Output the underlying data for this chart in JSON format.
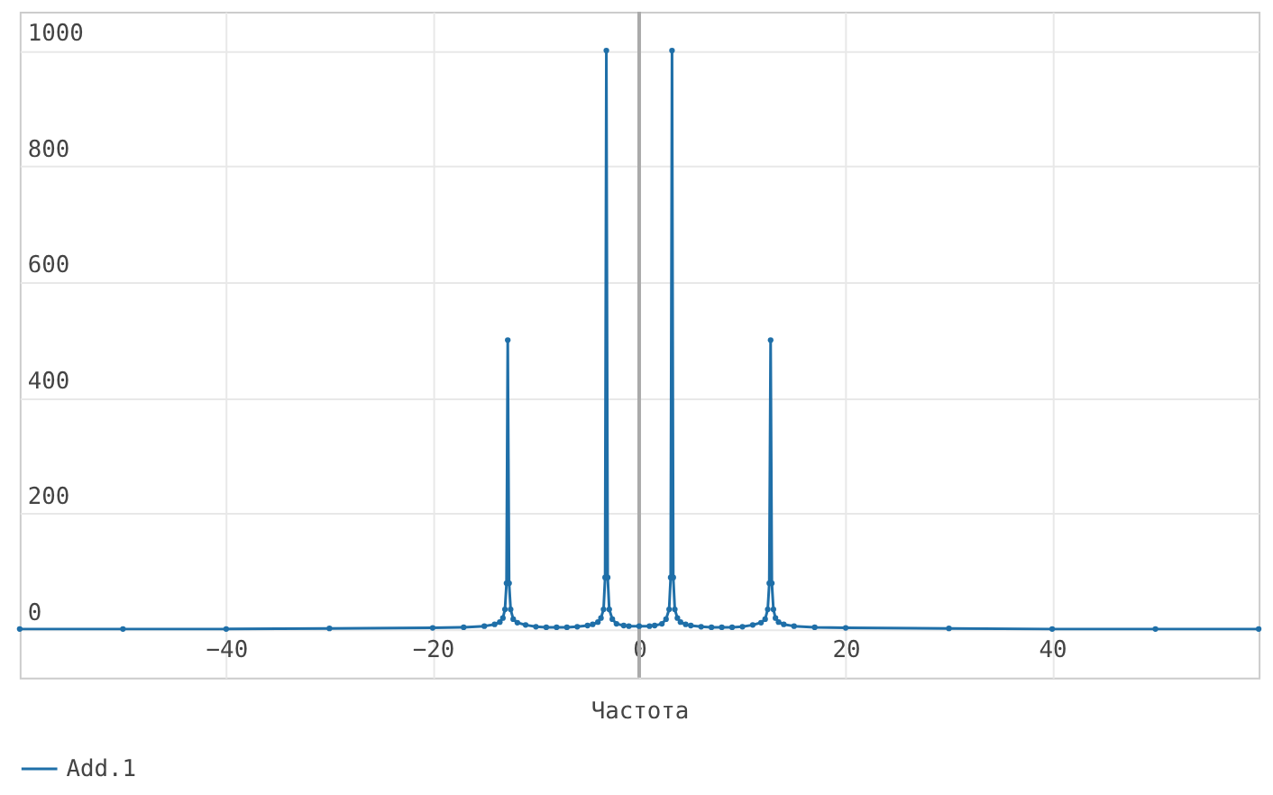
{
  "chart_data": {
    "type": "line",
    "xlabel": "Частота",
    "x": [
      -60,
      -50,
      -40,
      -30,
      -20,
      -17,
      -15,
      -14,
      -13.5,
      -13.2,
      -13.0,
      -12.85,
      -12.73,
      -12.6,
      -12.45,
      -12.2,
      -11.8,
      -11,
      -10,
      -9,
      -8,
      -7,
      -6,
      -5,
      -4.5,
      -4,
      -3.7,
      -3.45,
      -3.3,
      -3.18,
      -3.05,
      -2.9,
      -2.6,
      -2.2,
      -1.5,
      -1,
      0,
      1,
      1.5,
      2.2,
      2.6,
      2.9,
      3.05,
      3.18,
      3.3,
      3.45,
      3.7,
      4,
      4.5,
      5,
      6,
      7,
      8,
      9,
      10,
      11,
      11.8,
      12.2,
      12.45,
      12.6,
      12.73,
      12.85,
      13.0,
      13.2,
      13.5,
      14,
      15,
      17,
      20,
      30,
      40,
      50,
      60
    ],
    "series": [
      {
        "name": "Add.1",
        "color": "#1f6fa8",
        "values": [
          1,
          1,
          1,
          2,
          3,
          4,
          6,
          9,
          13,
          20,
          35,
          80,
          500,
          80,
          35,
          18,
          12,
          8,
          5,
          4,
          4,
          4,
          5,
          7,
          9,
          13,
          20,
          35,
          90,
          1000,
          90,
          35,
          18,
          10,
          7,
          6,
          6,
          6,
          7,
          10,
          18,
          35,
          90,
          1000,
          90,
          35,
          20,
          13,
          9,
          7,
          5,
          4,
          4,
          4,
          5,
          8,
          12,
          18,
          35,
          80,
          500,
          80,
          35,
          20,
          13,
          9,
          6,
          4,
          3,
          2,
          1,
          1,
          1
        ]
      }
    ],
    "xlim": [
      -60,
      60
    ],
    "xticks": [
      -40,
      -20,
      0,
      20,
      40
    ],
    "ylim": [
      -83,
      1067
    ],
    "yticks": [
      0,
      200,
      400,
      600,
      800,
      1000
    ],
    "ref_lines": [
      {
        "axis": "x",
        "value": 0,
        "color": "#aaaaaa"
      }
    ],
    "grid": true,
    "legend": "bottom left",
    "marker": "circle",
    "line_style": "solid"
  }
}
